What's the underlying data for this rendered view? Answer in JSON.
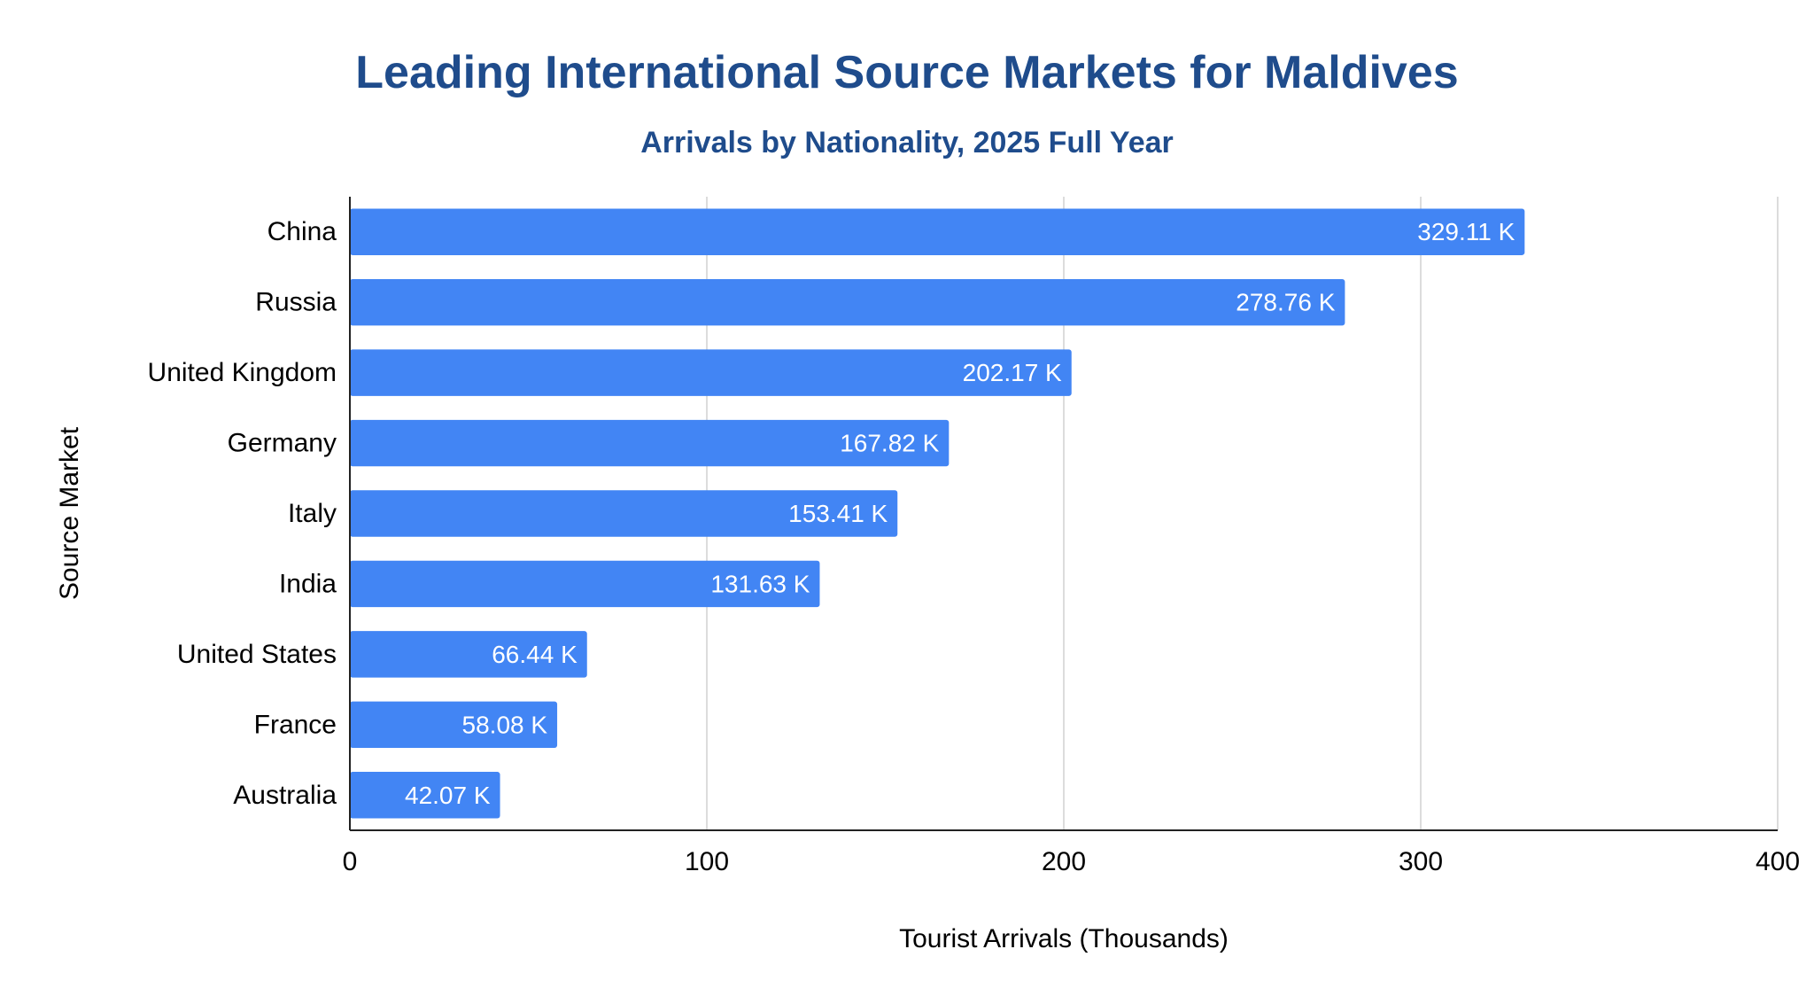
{
  "chart_data": {
    "type": "bar",
    "orientation": "horizontal",
    "title": "Leading International Source Markets for Maldives",
    "subtitle": "Arrivals by Nationality, 2025 Full Year",
    "xlabel": "Tourist Arrivals (Thousands)",
    "ylabel": "Source Market",
    "categories": [
      "China",
      "Russia",
      "United Kingdom",
      "Germany",
      "Italy",
      "India",
      "United States",
      "France",
      "Australia"
    ],
    "values": [
      329.11,
      278.76,
      202.17,
      167.82,
      153.41,
      131.63,
      66.44,
      58.08,
      42.07
    ],
    "data_labels": [
      "329.11 K",
      "278.76 K",
      "202.17 K",
      "167.82 K",
      "153.41 K",
      "131.63 K",
      "66.44 K",
      "58.08 K",
      "42.07 K"
    ],
    "xlim": [
      0,
      400
    ],
    "xticks": [
      0,
      100,
      200,
      300,
      400
    ],
    "grid": "vertical",
    "bar_color": "#4285f4",
    "title_color": "#1f4c8c"
  }
}
